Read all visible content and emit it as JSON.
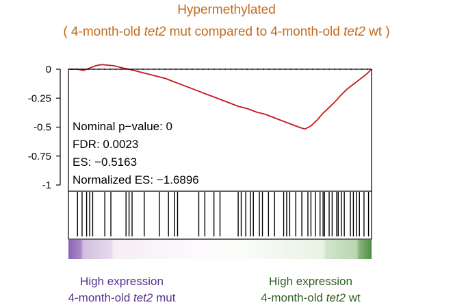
{
  "titles": {
    "line1": "Hypermethylated",
    "line2_pre": "( 4-month-old ",
    "line2_i1": "tet2",
    "line2_mid": " mut compared to 4-month-old ",
    "line2_i2": "tet2",
    "line2_post": " wt )"
  },
  "stats": {
    "nominal_p": "Nominal p−value: 0",
    "fdr": "FDR: 0.0023",
    "es": "ES: −0.5163",
    "nes": "Normalized ES: −1.6896"
  },
  "footer": {
    "left_line1": "High expression",
    "left_line2_pre": "4-month-old ",
    "left_line2_i": "tet2",
    "left_line2_post": " mut",
    "right_line1": "High expression",
    "right_line2_pre": "4-month-old ",
    "right_line2_i": "tet2",
    "right_line2_post": " wt"
  },
  "colors": {
    "title": "#c26a1c",
    "curve": "#c4161c",
    "left_label": "#5c2d8f",
    "right_label": "#2f5e22",
    "high_mut_band": "#8b63b6",
    "high_wt_band": "#4f8f45"
  },
  "chart_data": {
    "type": "line",
    "title": "Hypermethylated",
    "xlabel": "",
    "ylabel": "",
    "ylim": [
      -1,
      0.05
    ],
    "xlim": [
      0,
      1
    ],
    "y_ticks": [
      "0",
      "-0.25",
      "-0.5",
      "-0.75",
      "-1"
    ],
    "y_tick_values": [
      0,
      -0.25,
      -0.5,
      -0.75,
      -1
    ],
    "zero_line": true,
    "series": [
      {
        "x": [
          0,
          0.03,
          0.05,
          0.07,
          0.09,
          0.11,
          0.13,
          0.15,
          0.18,
          0.2,
          0.23,
          0.26,
          0.29,
          0.32,
          0.35,
          0.38,
          0.41,
          0.44,
          0.47,
          0.5,
          0.53,
          0.56,
          0.59,
          0.62,
          0.65,
          0.68,
          0.71,
          0.74,
          0.76,
          0.78,
          0.8,
          0.82,
          0.84,
          0.86,
          0.88,
          0.9,
          0.92,
          0.94,
          0.96,
          0.98,
          1.0
        ],
        "y": [
          0,
          0,
          -0.01,
          0.01,
          0.03,
          0.04,
          0.035,
          0.03,
          0.01,
          0.0,
          -0.02,
          -0.04,
          -0.06,
          -0.08,
          -0.11,
          -0.14,
          -0.17,
          -0.2,
          -0.23,
          -0.26,
          -0.29,
          -0.32,
          -0.34,
          -0.37,
          -0.39,
          -0.42,
          -0.45,
          -0.48,
          -0.5,
          -0.5163,
          -0.49,
          -0.44,
          -0.38,
          -0.33,
          -0.28,
          -0.22,
          -0.17,
          -0.13,
          -0.09,
          -0.05,
          0
        ]
      }
    ],
    "hits": [
      0.03,
      0.045,
      0.06,
      0.07,
      0.08,
      0.12,
      0.14,
      0.19,
      0.2,
      0.21,
      0.25,
      0.3,
      0.33,
      0.35,
      0.36,
      0.43,
      0.45,
      0.48,
      0.5,
      0.56,
      0.57,
      0.585,
      0.6,
      0.61,
      0.63,
      0.64,
      0.66,
      0.68,
      0.71,
      0.72,
      0.73,
      0.75,
      0.77,
      0.79,
      0.8,
      0.815,
      0.83,
      0.84,
      0.845,
      0.86,
      0.87,
      0.885,
      0.89,
      0.9,
      0.91,
      0.93,
      0.94,
      0.95,
      0.96,
      0.975,
      0.99
    ]
  }
}
